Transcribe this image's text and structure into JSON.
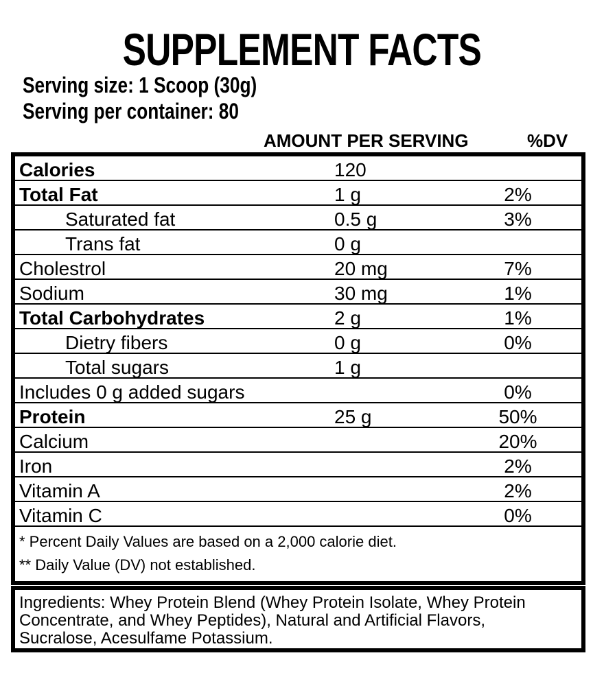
{
  "title": "SUPPLEMENT FACTS",
  "serving": {
    "size_label": "Serving size: 1 Scoop (30g)",
    "container_label": "Serving per container: 80"
  },
  "table": {
    "headers": {
      "amount": "AMOUNT PER SERVING",
      "dv": "%DV"
    },
    "rows": [
      {
        "label": "Calories",
        "indent": false,
        "emphasis": true,
        "amount": "120",
        "dv": ""
      },
      {
        "label": "Total Fat",
        "indent": false,
        "emphasis": true,
        "amount": "1 g",
        "dv": "2%"
      },
      {
        "label": "Saturated fat",
        "indent": true,
        "emphasis": false,
        "amount": "0.5 g",
        "dv": "3%"
      },
      {
        "label": "Trans fat",
        "indent": true,
        "emphasis": false,
        "amount": "0 g",
        "dv": ""
      },
      {
        "label": "Cholestrol",
        "indent": false,
        "emphasis": false,
        "amount": "20 mg",
        "dv": "7%"
      },
      {
        "label": "Sodium",
        "indent": false,
        "emphasis": false,
        "amount": "30 mg",
        "dv": "1%"
      },
      {
        "label": "Total Carbohydrates",
        "indent": false,
        "emphasis": true,
        "amount": "2 g",
        "dv": "1%"
      },
      {
        "label": "Dietry fibers",
        "indent": true,
        "emphasis": false,
        "amount": "0 g",
        "dv": "0%"
      },
      {
        "label": "Total sugars",
        "indent": true,
        "emphasis": false,
        "amount": "1 g",
        "dv": ""
      },
      {
        "label": "Includes 0 g added sugars",
        "indent": false,
        "emphasis": false,
        "amount": "",
        "dv": "0%"
      },
      {
        "label": "Protein",
        "indent": false,
        "emphasis": true,
        "amount": "25 g",
        "dv": "50%"
      },
      {
        "label": "Calcium",
        "indent": false,
        "emphasis": false,
        "amount": "",
        "dv": "20%"
      },
      {
        "label": "Iron",
        "indent": false,
        "emphasis": false,
        "amount": "",
        "dv": "2%"
      },
      {
        "label": "Vitamin A",
        "indent": false,
        "emphasis": false,
        "amount": "",
        "dv": "2%"
      },
      {
        "label": "Vitamin C",
        "indent": false,
        "emphasis": false,
        "amount": "",
        "dv": "0%"
      }
    ],
    "footnotes": [
      "* Percent Daily Values are based on a 2,000 calorie diet.",
      "** Daily Value (DV) not established."
    ]
  },
  "ingredients_lines": [
    "Ingredients: Whey Protein Blend (Whey Protein Isolate, Whey Protein",
    "Concentrate, and Whey Peptides), Natural and Artificial Flavors,",
    "Sucralose, Acesulfame Potassium."
  ],
  "colors": {
    "text": "#000000",
    "background": "#ffffff",
    "border": "#000000"
  }
}
